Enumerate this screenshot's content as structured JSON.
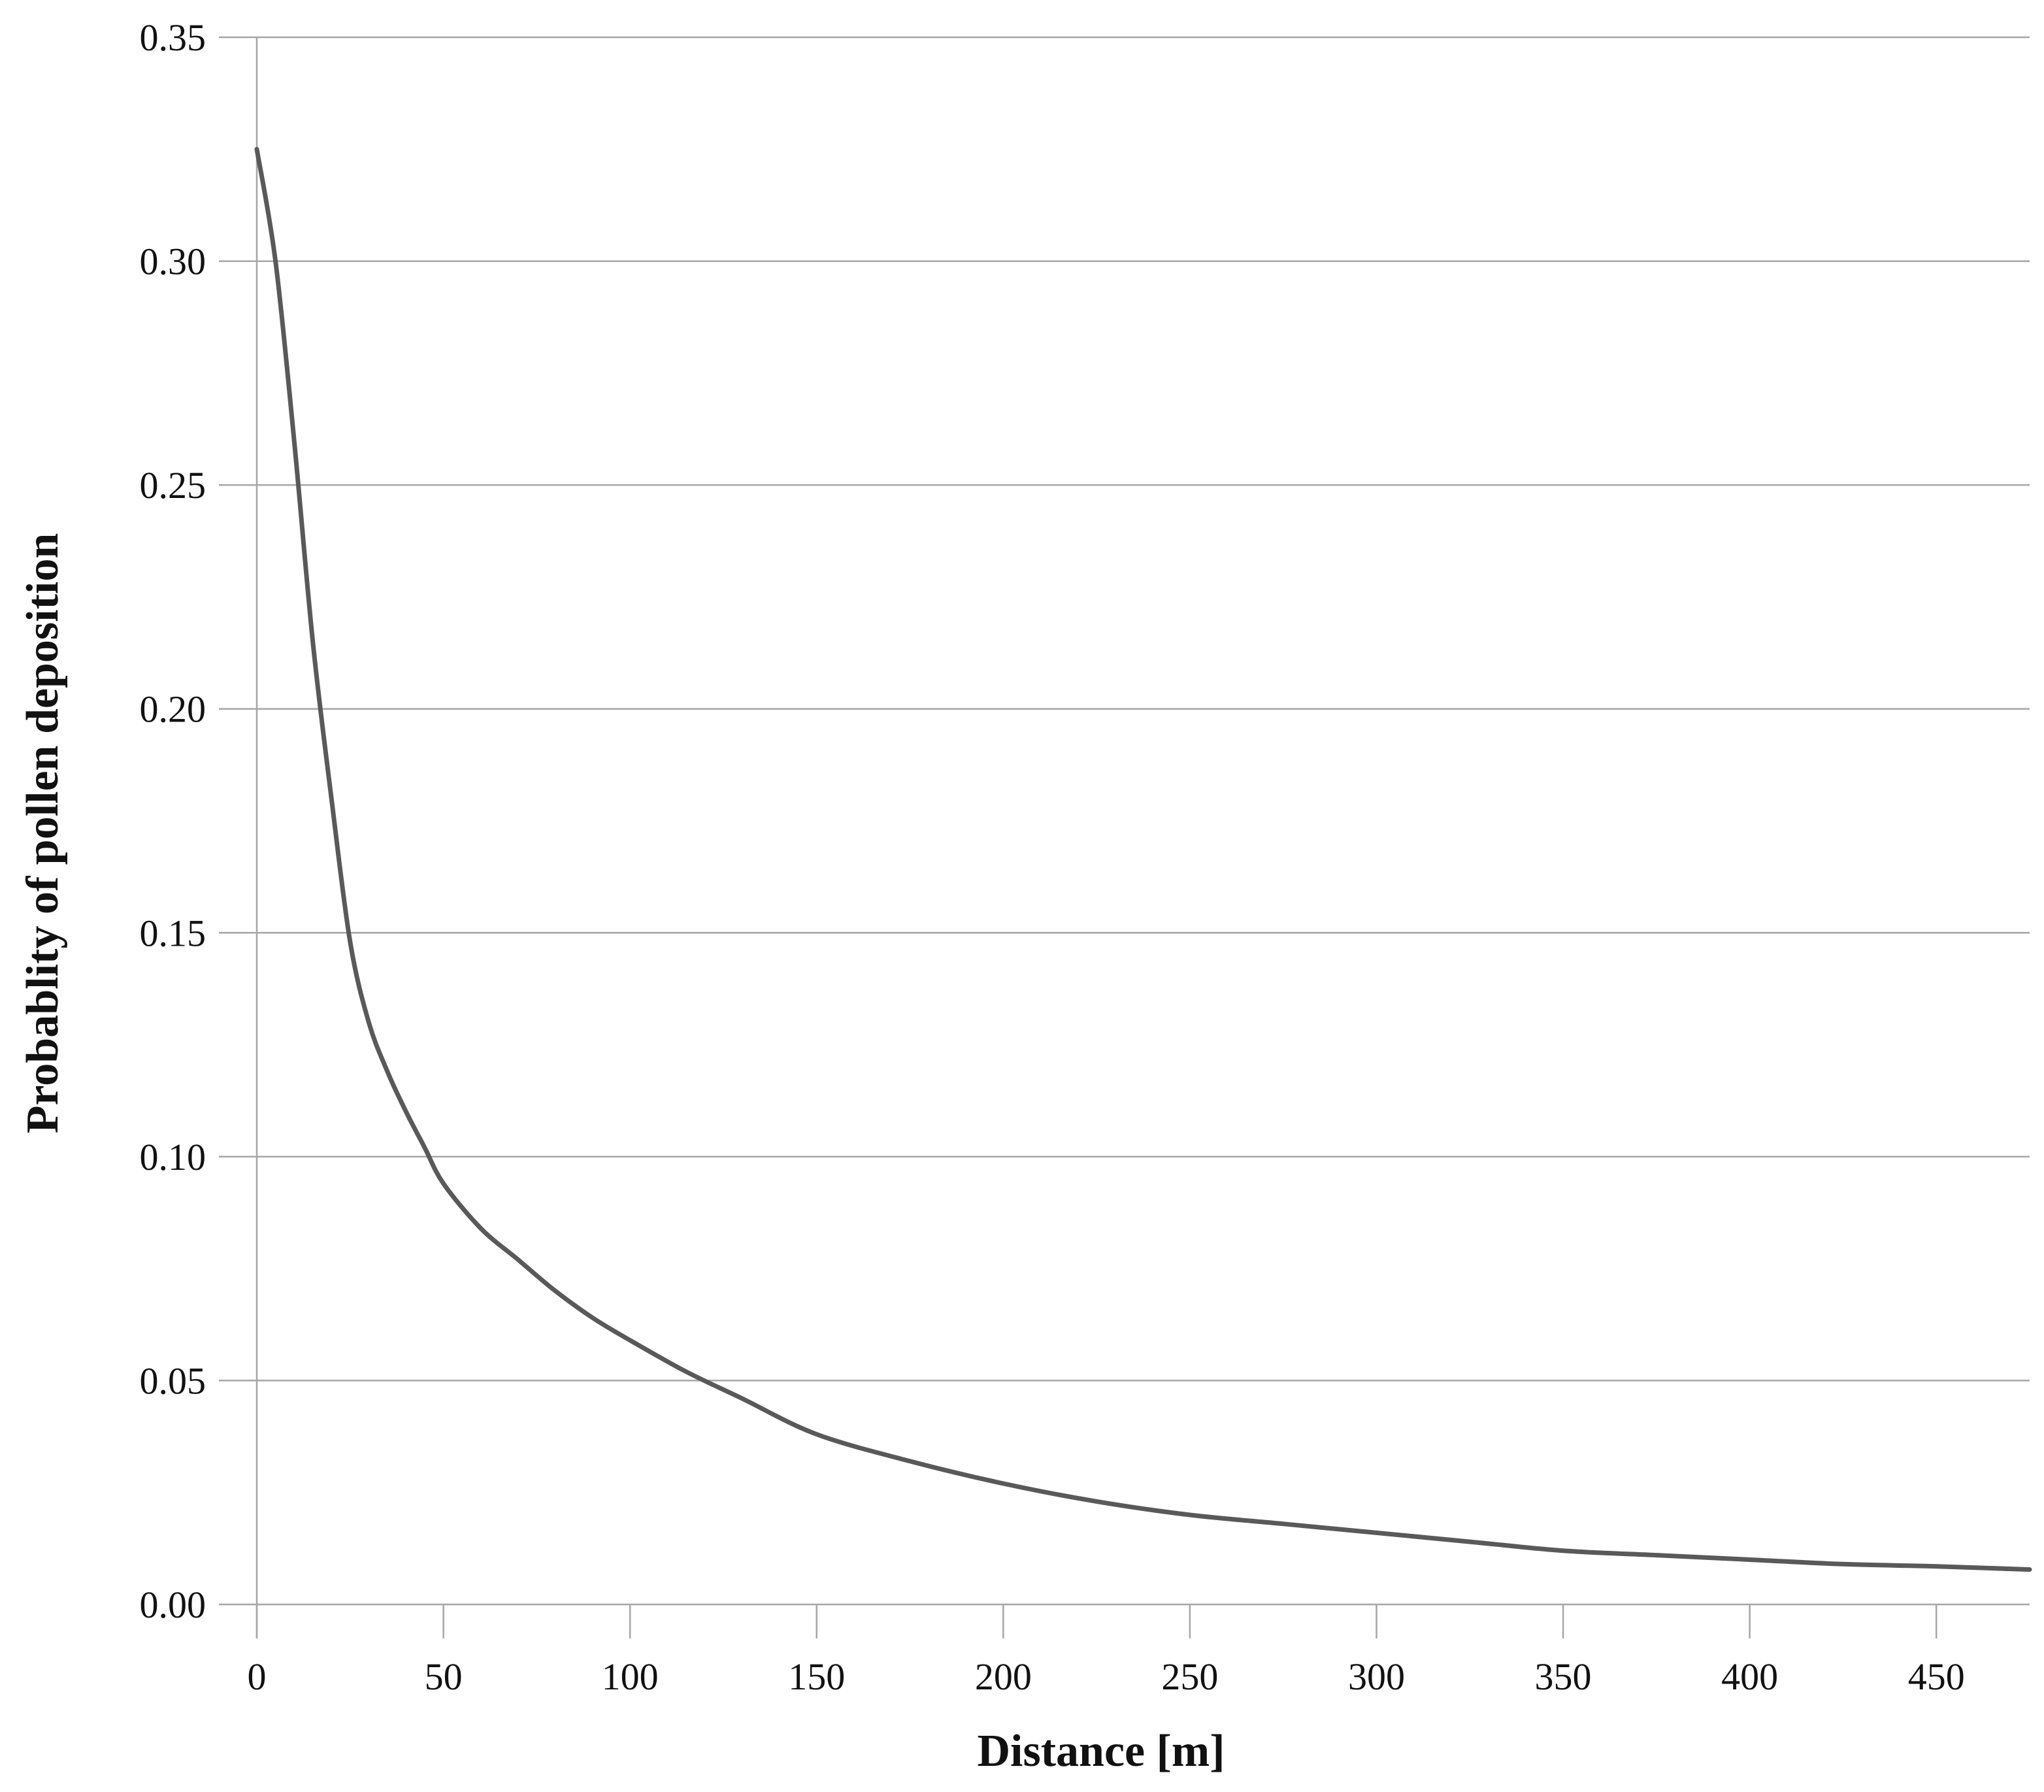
{
  "chart_data": {
    "type": "line",
    "title": "",
    "xlabel": "Distance [m]",
    "ylabel": "Probablity of pollen deposition",
    "xlim": [
      0,
      475
    ],
    "ylim": [
      0,
      0.35
    ],
    "x_ticks": [
      0,
      50,
      100,
      150,
      200,
      250,
      300,
      350,
      400,
      450
    ],
    "x_tick_labels": [
      "0",
      "50",
      "100",
      "150",
      "200",
      "250",
      "300",
      "350",
      "400",
      "450"
    ],
    "y_ticks": [
      0,
      0.05,
      0.1,
      0.15,
      0.2,
      0.25,
      0.3,
      0.35
    ],
    "y_tick_labels": [
      "0.00",
      "0.05",
      "0.10",
      "0.15",
      "0.20",
      "0.25",
      "0.30",
      "0.35"
    ],
    "grid": "horizontal",
    "legend": "none",
    "series": [
      {
        "color": "#595959",
        "x": [
          0,
          5,
          10,
          15,
          20,
          25,
          30,
          35,
          40,
          45,
          50,
          60,
          70,
          80,
          90,
          100,
          115,
          130,
          150,
          175,
          200,
          225,
          250,
          275,
          300,
          325,
          350,
          375,
          400,
          425,
          450,
          475
        ],
        "y": [
          0.325,
          0.3,
          0.26,
          0.215,
          0.18,
          0.148,
          0.13,
          0.119,
          0.11,
          0.102,
          0.094,
          0.084,
          0.077,
          0.07,
          0.064,
          0.059,
          0.052,
          0.046,
          0.038,
          0.032,
          0.027,
          0.023,
          0.02,
          0.018,
          0.016,
          0.014,
          0.012,
          0.011,
          0.01,
          0.009,
          0.0085,
          0.0078
        ]
      }
    ]
  }
}
